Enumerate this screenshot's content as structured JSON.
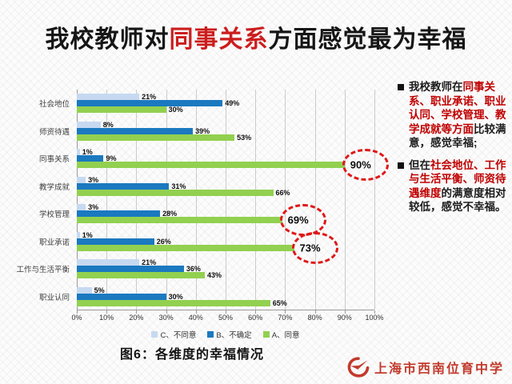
{
  "slide": {
    "title": {
      "pre": "我校教师对",
      "highlight": "同事关系",
      "post": "方面感觉最为幸福"
    },
    "caption": "图6：各维度的幸福情况"
  },
  "colors": {
    "series_c": "#c6d9f1",
    "series_b": "#1b79c0",
    "series_a": "#92d050",
    "title_red": "#cc1d1d",
    "panel_red": "#c00000",
    "annotation_red": "#e01717",
    "logo_red": "#c23a2c"
  },
  "chart_data": {
    "type": "bar",
    "orientation": "horizontal",
    "title": "",
    "xlabel": "",
    "ylabel": "",
    "xlim": [
      0,
      100
    ],
    "grid": true,
    "legend_position": "bottom",
    "data_labels": "percent",
    "categories": [
      "社会地位",
      "师资待遇",
      "同事关系",
      "教学成就",
      "学校管理",
      "职业承诺",
      "工作与生活平衡",
      "职业认同"
    ],
    "series": [
      {
        "name": "C、不同意",
        "color_key": "series_c",
        "values": [
          21,
          8,
          1,
          3,
          3,
          1,
          21,
          5
        ]
      },
      {
        "name": "B、不确定",
        "color_key": "series_b",
        "values": [
          49,
          39,
          9,
          31,
          28,
          26,
          36,
          30
        ]
      },
      {
        "name": "A、同意",
        "color_key": "series_a",
        "values": [
          30,
          53,
          90,
          66,
          69,
          73,
          43,
          65
        ]
      }
    ],
    "x_ticks": [
      "0%",
      "10%",
      "20%",
      "30%",
      "40%",
      "50%",
      "60%",
      "70%",
      "80%",
      "90%",
      "100%"
    ],
    "annotations": [
      {
        "category": "同事关系",
        "series": "A、同意",
        "label": "90%",
        "shape": "dashed-ellipse"
      },
      {
        "category": "学校管理",
        "series": "A、同意",
        "label": "69%",
        "shape": "dashed-ellipse"
      },
      {
        "category": "职业承诺",
        "series": "A、同意",
        "label": "73%",
        "shape": "dashed-ellipse"
      }
    ]
  },
  "panel": {
    "bullets": [
      {
        "segments": [
          {
            "text": "我校教师在",
            "red": false
          },
          {
            "text": "同事关系、职业承诺、职业认同、学校管理、教学成就等方面",
            "red": true
          },
          {
            "text": "比较满意，感觉幸福;",
            "red": false
          }
        ]
      },
      {
        "segments": [
          {
            "text": "但在",
            "red": false
          },
          {
            "text": "社会地位、工作与生活平衡、师资待遇维度",
            "red": true
          },
          {
            "text": "的满意度相对较低，感觉不幸福。",
            "red": false
          }
        ]
      }
    ]
  },
  "footer": {
    "school_name": "上海市西南位育中学"
  }
}
